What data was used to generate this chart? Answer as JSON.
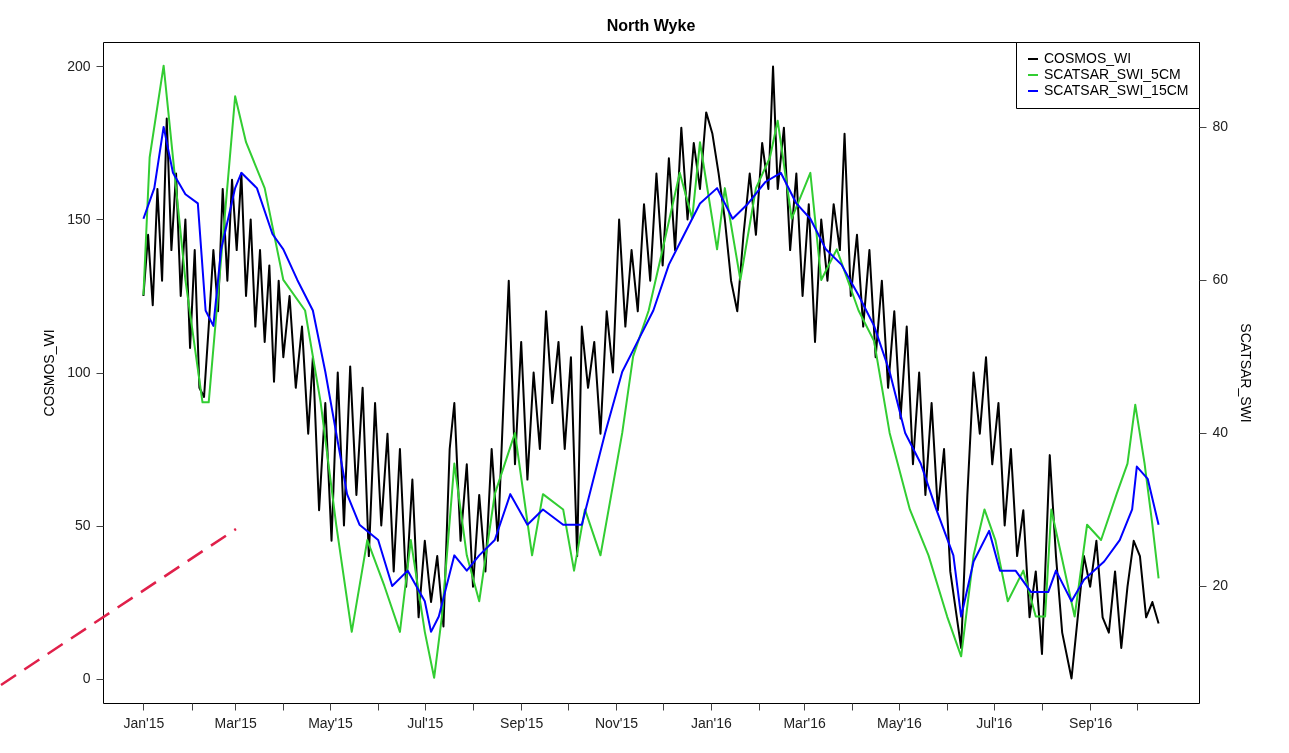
{
  "chart_data": {
    "type": "line",
    "title": "North Wyke",
    "ylabel": "COSMOS_WI",
    "y2label": "SCATSAR_SWI",
    "legend": "top right",
    "xlim": [
      "2014-12-06",
      "2016-11-10"
    ],
    "xticks": [
      {
        "value": "2015-01-01",
        "label": "Jan'15"
      },
      {
        "value": "2015-02-01",
        "label": null
      },
      {
        "value": "2015-03-01",
        "label": "Mar'15"
      },
      {
        "value": "2015-04-01",
        "label": null
      },
      {
        "value": "2015-05-01",
        "label": "May'15"
      },
      {
        "value": "2015-06-01",
        "label": null
      },
      {
        "value": "2015-07-01",
        "label": "Jul'15"
      },
      {
        "value": "2015-08-01",
        "label": null
      },
      {
        "value": "2015-09-01",
        "label": "Sep'15"
      },
      {
        "value": "2015-10-01",
        "label": null
      },
      {
        "value": "2015-11-01",
        "label": "Nov'15"
      },
      {
        "value": "2015-12-01",
        "label": null
      },
      {
        "value": "2016-01-01",
        "label": "Jan'16"
      },
      {
        "value": "2016-02-01",
        "label": null
      },
      {
        "value": "2016-03-01",
        "label": "Mar'16"
      },
      {
        "value": "2016-04-01",
        "label": null
      },
      {
        "value": "2016-05-01",
        "label": "May'16"
      },
      {
        "value": "2016-06-01",
        "label": null
      },
      {
        "value": "2016-07-01",
        "label": "Jul'16"
      },
      {
        "value": "2016-08-01",
        "label": null
      },
      {
        "value": "2016-09-01",
        "label": "Sep'16"
      },
      {
        "value": "2016-10-01",
        "label": null
      }
    ],
    "ylim": [
      -8,
      208
    ],
    "yticks": [
      0,
      50,
      100,
      150,
      200
    ],
    "y2lim": [
      4.7,
      91.1
    ],
    "y2ticks": [
      20,
      40,
      60,
      80
    ],
    "series": [
      {
        "name": "COSMOS_WI",
        "color": "#000000",
        "x": [
          "2015-01-01",
          "2015-01-04",
          "2015-01-07",
          "2015-01-10",
          "2015-01-13",
          "2015-01-16",
          "2015-01-19",
          "2015-01-22",
          "2015-01-25",
          "2015-01-28",
          "2015-01-31",
          "2015-02-03",
          "2015-02-06",
          "2015-02-09",
          "2015-02-12",
          "2015-02-15",
          "2015-02-18",
          "2015-02-21",
          "2015-02-24",
          "2015-02-27",
          "2015-03-02",
          "2015-03-05",
          "2015-03-08",
          "2015-03-11",
          "2015-03-14",
          "2015-03-17",
          "2015-03-20",
          "2015-03-23",
          "2015-03-26",
          "2015-03-29",
          "2015-04-01",
          "2015-04-05",
          "2015-04-09",
          "2015-04-13",
          "2015-04-17",
          "2015-04-20",
          "2015-04-24",
          "2015-04-28",
          "2015-05-02",
          "2015-05-06",
          "2015-05-10",
          "2015-05-14",
          "2015-05-18",
          "2015-05-22",
          "2015-05-26",
          "2015-05-30",
          "2015-06-03",
          "2015-06-07",
          "2015-06-11",
          "2015-06-15",
          "2015-06-19",
          "2015-06-23",
          "2015-06-27",
          "2015-07-01",
          "2015-07-05",
          "2015-07-09",
          "2015-07-13",
          "2015-07-17",
          "2015-07-20",
          "2015-07-24",
          "2015-07-28",
          "2015-08-01",
          "2015-08-05",
          "2015-08-09",
          "2015-08-13",
          "2015-08-17",
          "2015-08-21",
          "2015-08-24",
          "2015-08-28",
          "2015-09-01",
          "2015-09-05",
          "2015-09-09",
          "2015-09-13",
          "2015-09-17",
          "2015-09-21",
          "2015-09-25",
          "2015-09-29",
          "2015-10-03",
          "2015-10-07",
          "2015-10-10",
          "2015-10-14",
          "2015-10-18",
          "2015-10-22",
          "2015-10-26",
          "2015-10-30",
          "2015-11-03",
          "2015-11-07",
          "2015-11-11",
          "2015-11-15",
          "2015-11-19",
          "2015-11-23",
          "2015-11-27",
          "2015-12-01",
          "2015-12-05",
          "2015-12-09",
          "2015-12-13",
          "2015-12-17",
          "2015-12-21",
          "2015-12-25",
          "2015-12-29",
          "2016-01-02",
          "2016-01-06",
          "2016-01-10",
          "2016-01-14",
          "2016-01-18",
          "2016-01-22",
          "2016-01-26",
          "2016-01-30",
          "2016-02-03",
          "2016-02-07",
          "2016-02-10",
          "2016-02-13",
          "2016-02-17",
          "2016-02-21",
          "2016-02-25",
          "2016-02-29",
          "2016-03-04",
          "2016-03-08",
          "2016-03-12",
          "2016-03-16",
          "2016-03-20",
          "2016-03-24",
          "2016-03-27",
          "2016-03-31",
          "2016-04-04",
          "2016-04-08",
          "2016-04-12",
          "2016-04-16",
          "2016-04-20",
          "2016-04-24",
          "2016-04-28",
          "2016-05-02",
          "2016-05-06",
          "2016-05-10",
          "2016-05-14",
          "2016-05-18",
          "2016-05-22",
          "2016-05-26",
          "2016-05-30",
          "2016-06-03",
          "2016-06-10",
          "2016-06-14",
          "2016-06-18",
          "2016-06-22",
          "2016-06-26",
          "2016-06-30",
          "2016-07-04",
          "2016-07-08",
          "2016-07-12",
          "2016-07-16",
          "2016-07-20",
          "2016-07-24",
          "2016-07-28",
          "2016-08-01",
          "2016-08-06",
          "2016-08-10",
          "2016-08-14",
          "2016-08-20",
          "2016-08-24",
          "2016-08-28",
          "2016-09-01",
          "2016-09-05",
          "2016-09-09",
          "2016-09-13",
          "2016-09-17",
          "2016-09-21",
          "2016-09-25",
          "2016-09-29",
          "2016-10-03",
          "2016-10-07",
          "2016-10-11",
          "2016-10-15"
        ],
        "values": [
          125,
          145,
          122,
          160,
          130,
          183,
          140,
          165,
          125,
          150,
          108,
          140,
          95,
          92,
          115,
          140,
          120,
          160,
          130,
          163,
          140,
          165,
          125,
          150,
          115,
          140,
          110,
          135,
          97,
          130,
          105,
          125,
          95,
          115,
          80,
          105,
          55,
          90,
          45,
          100,
          50,
          102,
          60,
          95,
          40,
          90,
          50,
          80,
          35,
          75,
          30,
          65,
          20,
          45,
          25,
          40,
          17,
          75,
          90,
          45,
          70,
          30,
          60,
          35,
          75,
          45,
          95,
          130,
          70,
          110,
          65,
          100,
          75,
          120,
          90,
          110,
          75,
          105,
          40,
          115,
          95,
          110,
          80,
          120,
          100,
          150,
          115,
          140,
          120,
          155,
          130,
          165,
          135,
          170,
          140,
          180,
          150,
          175,
          160,
          185,
          178,
          165,
          150,
          130,
          120,
          145,
          165,
          145,
          175,
          160,
          200,
          160,
          180,
          140,
          165,
          125,
          155,
          110,
          150,
          130,
          155,
          140,
          178,
          125,
          145,
          115,
          140,
          105,
          130,
          95,
          120,
          85,
          115,
          70,
          100,
          60,
          90,
          55,
          75,
          35,
          10,
          60,
          100,
          80,
          105,
          70,
          90,
          50,
          75,
          40,
          55,
          20,
          35,
          8,
          73,
          40,
          15,
          0,
          20,
          40,
          30,
          45,
          20,
          15,
          35,
          10,
          30,
          45,
          40,
          20,
          25,
          18
        ]
      },
      {
        "name": "SCATSAR_SWI_5CM",
        "color": "#32cd32",
        "axis": "y2",
        "x": [
          "2015-01-01",
          "2015-01-05",
          "2015-01-14",
          "2015-01-28",
          "2015-02-08",
          "2015-02-12",
          "2015-03-01",
          "2015-03-08",
          "2015-03-20",
          "2015-04-01",
          "2015-04-15",
          "2015-04-25",
          "2015-05-05",
          "2015-05-15",
          "2015-05-25",
          "2015-06-05",
          "2015-06-15",
          "2015-06-22",
          "2015-07-01",
          "2015-07-07",
          "2015-07-12",
          "2015-07-20",
          "2015-07-28",
          "2015-08-05",
          "2015-08-15",
          "2015-08-28",
          "2015-09-08",
          "2015-09-15",
          "2015-09-28",
          "2015-10-05",
          "2015-10-12",
          "2015-10-22",
          "2015-11-05",
          "2015-11-12",
          "2015-11-22",
          "2015-12-01",
          "2015-12-12",
          "2015-12-20",
          "2015-12-25",
          "2016-01-05",
          "2016-01-10",
          "2016-01-20",
          "2016-01-30",
          "2016-02-08",
          "2016-02-13",
          "2016-02-22",
          "2016-03-05",
          "2016-03-12",
          "2016-03-22",
          "2016-04-05",
          "2016-04-15",
          "2016-04-25",
          "2016-05-08",
          "2016-05-20",
          "2016-06-01",
          "2016-06-10",
          "2016-06-18",
          "2016-06-25",
          "2016-07-02",
          "2016-07-10",
          "2016-07-20",
          "2016-07-28",
          "2016-08-03",
          "2016-08-07",
          "2016-08-22",
          "2016-08-30",
          "2016-09-08",
          "2016-09-18",
          "2016-09-25",
          "2016-09-30",
          "2016-10-06",
          "2016-10-11",
          "2016-10-15"
        ],
        "values": [
          58,
          76,
          88,
          60,
          44,
          44,
          84,
          78,
          72,
          60,
          56,
          44,
          28,
          14,
          26,
          20,
          14,
          26,
          14,
          8,
          16,
          36,
          24,
          18,
          32,
          40,
          24,
          32,
          30,
          22,
          30,
          24,
          40,
          50,
          56,
          64,
          74,
          68,
          78,
          64,
          72,
          60,
          72,
          76,
          80.8,
          68,
          74,
          60,
          64,
          56,
          52,
          40,
          30,
          24,
          16,
          10.8,
          24,
          30,
          26,
          18,
          22,
          16,
          16,
          30,
          16,
          28,
          26,
          32,
          36,
          43.7,
          36,
          28,
          21
        ]
      },
      {
        "name": "SCATSAR_SWI_15CM",
        "color": "#0000ff",
        "axis": "y2",
        "x": [
          "2015-01-01",
          "2015-01-08",
          "2015-01-14",
          "2015-01-20",
          "2015-01-28",
          "2015-02-05",
          "2015-02-10",
          "2015-02-15",
          "2015-02-20",
          "2015-03-01",
          "2015-03-05",
          "2015-03-15",
          "2015-03-25",
          "2015-04-01",
          "2015-04-10",
          "2015-04-20",
          "2015-04-28",
          "2015-05-05",
          "2015-05-12",
          "2015-05-20",
          "2015-06-01",
          "2015-06-10",
          "2015-06-20",
          "2015-07-01",
          "2015-07-05",
          "2015-07-10",
          "2015-07-20",
          "2015-07-28",
          "2015-08-05",
          "2015-08-15",
          "2015-08-25",
          "2015-09-05",
          "2015-09-15",
          "2015-09-28",
          "2015-10-10",
          "2015-10-15",
          "2015-10-25",
          "2015-11-05",
          "2015-11-15",
          "2015-11-25",
          "2015-12-05",
          "2015-12-15",
          "2015-12-25",
          "2016-01-05",
          "2016-01-15",
          "2016-01-25",
          "2016-02-05",
          "2016-02-15",
          "2016-02-25",
          "2016-03-05",
          "2016-03-15",
          "2016-03-25",
          "2016-04-05",
          "2016-04-15",
          "2016-04-25",
          "2016-05-05",
          "2016-05-15",
          "2016-05-25",
          "2016-06-05",
          "2016-06-10",
          "2016-06-18",
          "2016-06-28",
          "2016-07-05",
          "2016-07-15",
          "2016-07-25",
          "2016-08-05",
          "2016-08-10",
          "2016-08-20",
          "2016-08-28",
          "2016-09-10",
          "2016-09-20",
          "2016-09-28",
          "2016-10-01",
          "2016-10-08",
          "2016-10-15"
        ],
        "values": [
          68,
          72,
          80,
          74,
          71.2,
          70,
          56,
          54,
          64,
          72,
          74,
          72,
          66,
          64,
          60,
          56,
          48,
          40,
          32,
          28,
          26,
          20,
          22,
          18,
          14,
          16,
          24,
          22,
          24,
          26,
          32,
          28,
          30,
          28,
          28,
          32,
          40,
          48,
          52,
          56,
          62,
          66,
          70,
          72,
          68,
          70,
          72.8,
          74,
          70,
          68,
          64,
          62,
          58,
          54,
          48,
          40,
          36,
          30,
          24,
          16,
          23.2,
          27.2,
          22,
          22,
          19.2,
          19.2,
          22,
          18,
          20.8,
          23.2,
          26,
          30,
          35.6,
          34,
          28
        ]
      }
    ]
  }
}
